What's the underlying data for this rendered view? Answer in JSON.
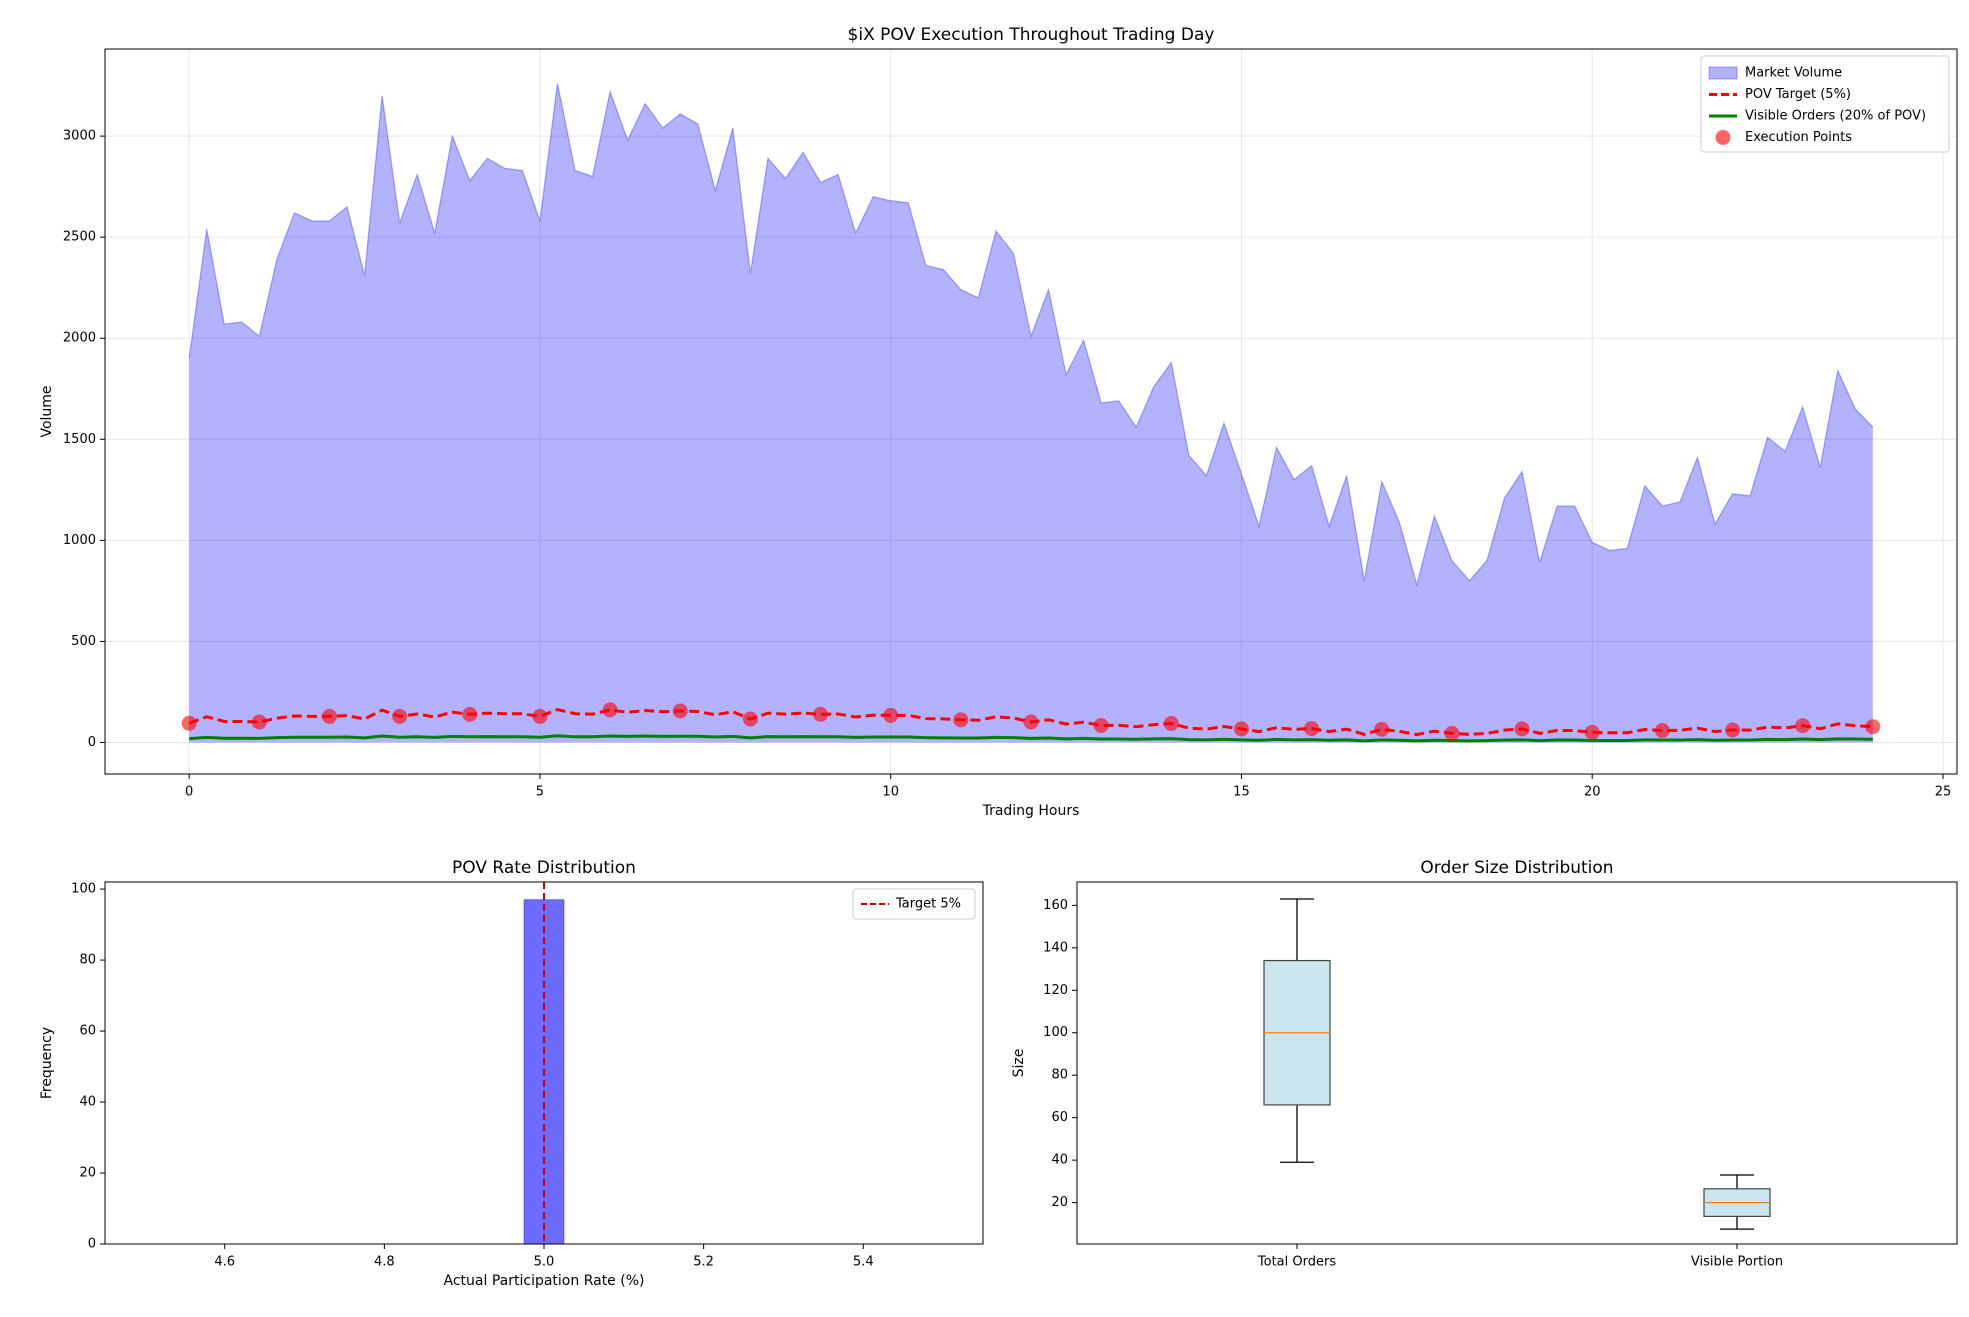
{
  "chart_data": [
    {
      "type": "area",
      "title": "$iX POV Execution Throughout Trading Day",
      "x_label": "Trading Hours",
      "y_label": "Volume",
      "x": [
        0,
        0.25,
        0.5,
        0.75,
        1,
        1.25,
        1.5,
        1.75,
        2,
        2.25,
        2.5,
        2.75,
        3,
        3.25,
        3.5,
        3.75,
        4,
        4.25,
        4.5,
        4.75,
        5,
        5.25,
        5.5,
        5.75,
        6,
        6.25,
        6.5,
        6.75,
        7,
        7.25,
        7.5,
        7.75,
        8,
        8.25,
        8.5,
        8.75,
        9,
        9.25,
        9.5,
        9.75,
        10,
        10.25,
        10.5,
        10.75,
        11,
        11.25,
        11.5,
        11.75,
        12,
        12.25,
        12.5,
        12.75,
        13,
        13.25,
        13.5,
        13.75,
        14,
        14.25,
        14.5,
        14.75,
        15,
        15.25,
        15.5,
        15.75,
        16,
        16.25,
        16.5,
        16.75,
        17,
        17.25,
        17.5,
        17.75,
        18,
        18.25,
        18.5,
        18.75,
        19,
        19.25,
        19.5,
        19.75,
        20,
        20.25,
        20.5,
        20.75,
        21,
        21.25,
        21.5,
        21.75,
        22,
        22.25,
        22.5,
        22.75,
        23,
        23.25,
        23.5,
        23.75,
        24
      ],
      "series": [
        {
          "name": "Market Volume",
          "style": "area",
          "color": "#0000ff",
          "alpha": 0.3,
          "values": [
            1900,
            2540,
            2070,
            2080,
            2010,
            2390,
            2620,
            2580,
            2580,
            2650,
            2310,
            3200,
            2570,
            2810,
            2520,
            3000,
            2780,
            2890,
            2840,
            2830,
            2580,
            3260,
            2830,
            2800,
            3220,
            2980,
            3160,
            3040,
            3110,
            3060,
            2730,
            3040,
            2320,
            2890,
            2790,
            2920,
            2770,
            2810,
            2520,
            2700,
            2680,
            2670,
            2360,
            2340,
            2240,
            2200,
            2530,
            2420,
            2010,
            2240,
            1820,
            1990,
            1680,
            1690,
            1560,
            1760,
            1880,
            1420,
            1320,
            1580,
            1330,
            1070,
            1460,
            1300,
            1370,
            1070,
            1320,
            800,
            1290,
            1090,
            780,
            1120,
            900,
            800,
            900,
            1210,
            1340,
            890,
            1170,
            1170,
            990,
            950,
            960,
            1270,
            1170,
            1190,
            1410,
            1080,
            1230,
            1220,
            1510,
            1440,
            1660,
            1360,
            1840,
            1650,
            1560
          ]
        },
        {
          "name": "POV Target (5%)",
          "style": "dashed",
          "color": "#ff0000",
          "values": [
            95,
            127,
            104,
            104,
            101,
            120,
            131,
            129,
            129,
            133,
            116,
            160,
            129,
            141,
            126,
            150,
            139,
            145,
            142,
            142,
            129,
            163,
            142,
            140,
            161,
            149,
            158,
            152,
            156,
            153,
            137,
            152,
            116,
            145,
            140,
            146,
            139,
            141,
            126,
            135,
            134,
            134,
            118,
            117,
            112,
            110,
            127,
            121,
            101,
            112,
            91,
            100,
            84,
            85,
            78,
            88,
            94,
            71,
            66,
            79,
            67,
            54,
            73,
            65,
            69,
            54,
            66,
            40,
            65,
            55,
            39,
            56,
            45,
            40,
            45,
            61,
            67,
            45,
            59,
            59,
            50,
            48,
            48,
            64,
            59,
            60,
            71,
            54,
            62,
            61,
            76,
            72,
            83,
            68,
            92,
            83,
            78
          ]
        },
        {
          "name": "Visible Orders (20% of POV)",
          "style": "line",
          "color": "#008000",
          "values": [
            19,
            25,
            21,
            21,
            20,
            24,
            26,
            26,
            26,
            27,
            23,
            32,
            26,
            28,
            25,
            30,
            28,
            29,
            28,
            28,
            26,
            33,
            28,
            28,
            32,
            30,
            32,
            30,
            31,
            31,
            27,
            30,
            23,
            29,
            28,
            29,
            28,
            28,
            25,
            27,
            27,
            27,
            24,
            23,
            22,
            22,
            25,
            24,
            20,
            22,
            18,
            20,
            17,
            17,
            16,
            18,
            19,
            14,
            13,
            16,
            13,
            11,
            15,
            13,
            14,
            11,
            13,
            8,
            13,
            11,
            8,
            11,
            9,
            8,
            9,
            12,
            13,
            9,
            12,
            12,
            10,
            10,
            10,
            13,
            12,
            12,
            14,
            11,
            12,
            12,
            15,
            14,
            17,
            14,
            18,
            17,
            16
          ]
        },
        {
          "name": "Execution Points",
          "style": "scatter",
          "color": "#ff0000",
          "alpha": 0.6,
          "x": [
            0,
            1,
            2,
            3,
            4,
            5,
            6,
            7,
            8,
            9,
            10,
            11,
            12,
            13,
            14,
            15,
            16,
            17,
            18,
            19,
            20,
            21,
            22,
            23,
            24
          ],
          "values": [
            95,
            101,
            129,
            129,
            139,
            129,
            161,
            156,
            116,
            139,
            134,
            112,
            101,
            84,
            94,
            67,
            69,
            65,
            45,
            67,
            50,
            59,
            62,
            83,
            78
          ]
        }
      ],
      "xlim": [
        -1.2,
        25.2
      ],
      "xticks": [
        0,
        5,
        10,
        15,
        20,
        25
      ],
      "ylim": [
        -156,
        3431
      ],
      "yticks": [
        0,
        500,
        1000,
        1500,
        2000,
        2500,
        3000
      ],
      "grid": true,
      "legend": "upper right"
    },
    {
      "type": "histogram",
      "title": "POV Rate Distribution",
      "x_label": "Actual Participation Rate (%)",
      "y_label": "Frequency",
      "bins": [
        4.975,
        5.025
      ],
      "values": [
        97
      ],
      "color": "#6b6bff",
      "target_line": {
        "value": 5,
        "label": "Target 5%",
        "color": "#cc0000"
      },
      "xlim": [
        4.45,
        5.55
      ],
      "xticks": [
        4.6,
        4.8,
        {
          "value": 5,
          "label": "5.0"
        },
        5.2,
        5.4
      ],
      "ylim": [
        0,
        102
      ],
      "yticks": [
        0,
        20,
        40,
        60,
        80,
        100
      ],
      "grid": false,
      "legend": "upper right"
    },
    {
      "type": "box",
      "title": "Order Size Distribution",
      "y_label": "Size",
      "categories": [
        "Total Orders",
        "Visible Portion"
      ],
      "boxes": [
        {
          "whislo": 39,
          "q1": 66,
          "med": 100,
          "q3": 134,
          "whishi": 163
        },
        {
          "whislo": 7.5,
          "q1": 13.5,
          "med": 20,
          "q3": 26.5,
          "whishi": 33
        }
      ],
      "color": "#cce6ef",
      "median_color": "#ff7f0e",
      "ylim": [
        0.5,
        171
      ],
      "yticks": [
        20,
        40,
        60,
        80,
        100,
        120,
        140,
        160
      ],
      "grid": false
    }
  ]
}
